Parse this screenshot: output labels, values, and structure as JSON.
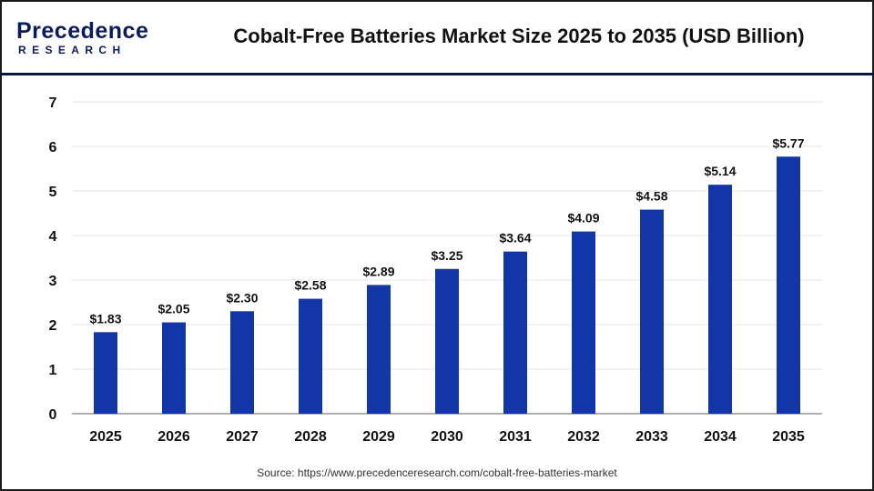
{
  "logo": {
    "brand_top": "Precedence",
    "brand_bottom": "RESEARCH"
  },
  "title": "Cobalt-Free Batteries Market Size 2025 to 2035 (USD Billion)",
  "source": "Source: https://www.precedenceresearch.com/cobalt-free-batteries-market",
  "colors": {
    "bar": "#1236a8",
    "header_line": "#0b1347",
    "grid": "#e6e6e6",
    "axis": "#b0b0b0"
  },
  "chart_data": {
    "type": "bar",
    "title": "Cobalt-Free Batteries Market Size 2025 to 2035 (USD Billion)",
    "categories": [
      "2025",
      "2026",
      "2027",
      "2028",
      "2029",
      "2030",
      "2031",
      "2032",
      "2033",
      "2034",
      "2035"
    ],
    "values": [
      1.83,
      2.05,
      2.3,
      2.58,
      2.89,
      3.25,
      3.64,
      4.09,
      4.58,
      5.14,
      5.77
    ],
    "data_labels": [
      "$1.83",
      "$2.05",
      "$2.30",
      "$2.58",
      "$2.89",
      "$3.25",
      "$3.64",
      "$4.09",
      "$4.58",
      "$5.14",
      "$5.77"
    ],
    "yticks": [
      "0",
      "1",
      "2",
      "3",
      "4",
      "5",
      "6",
      "7"
    ],
    "ylim": [
      0,
      7
    ],
    "xlabel": "",
    "ylabel": "",
    "grid": true
  }
}
